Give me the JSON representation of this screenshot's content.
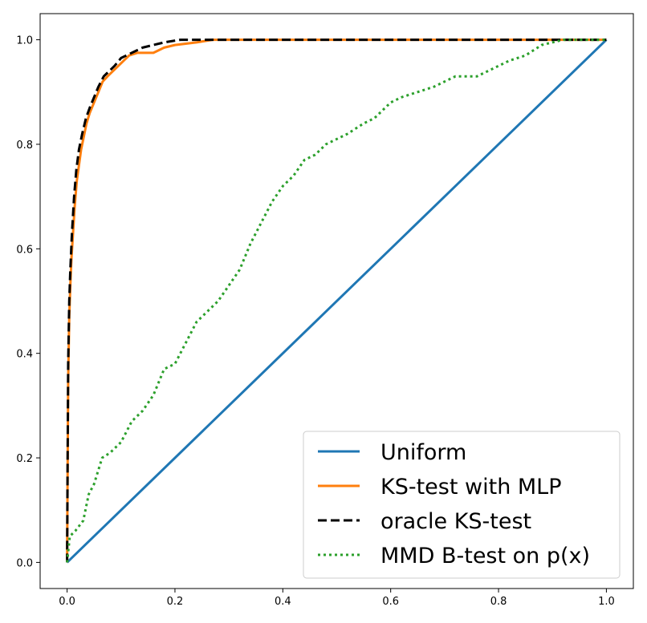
{
  "chart_data": {
    "type": "line",
    "title": "",
    "xlabel": "",
    "ylabel": "",
    "xlim": [
      -0.05,
      1.05
    ],
    "ylim": [
      -0.05,
      1.05
    ],
    "x_ticks": [
      "0.0",
      "0.2",
      "0.4",
      "0.6",
      "0.8",
      "1.0"
    ],
    "y_ticks": [
      "0.0",
      "0.2",
      "0.4",
      "0.6",
      "0.8",
      "1.0"
    ],
    "grid": false,
    "legend_position": "bottom-right",
    "series": [
      {
        "name": "Uniform",
        "color": "#1f77b4",
        "style": "solid",
        "points": [
          [
            0,
            0
          ],
          [
            1,
            1
          ]
        ]
      },
      {
        "name": "KS-test with MLP",
        "color": "#ff7f0e",
        "style": "solid",
        "points": [
          [
            0,
            0
          ],
          [
            0.001,
            0.18
          ],
          [
            0.002,
            0.35
          ],
          [
            0.004,
            0.47
          ],
          [
            0.006,
            0.53
          ],
          [
            0.008,
            0.58
          ],
          [
            0.011,
            0.63
          ],
          [
            0.014,
            0.68
          ],
          [
            0.018,
            0.73
          ],
          [
            0.022,
            0.76
          ],
          [
            0.026,
            0.79
          ],
          [
            0.03,
            0.81
          ],
          [
            0.036,
            0.84
          ],
          [
            0.042,
            0.86
          ],
          [
            0.05,
            0.88
          ],
          [
            0.058,
            0.9
          ],
          [
            0.066,
            0.92
          ],
          [
            0.075,
            0.93
          ],
          [
            0.085,
            0.94
          ],
          [
            0.095,
            0.95
          ],
          [
            0.105,
            0.96
          ],
          [
            0.115,
            0.97
          ],
          [
            0.13,
            0.975
          ],
          [
            0.16,
            0.975
          ],
          [
            0.18,
            0.985
          ],
          [
            0.2,
            0.99
          ],
          [
            0.24,
            0.995
          ],
          [
            0.27,
            1.0
          ],
          [
            1.0,
            1.0
          ]
        ]
      },
      {
        "name": "oracle KS-test",
        "color": "#000000",
        "style": "dashed",
        "points": [
          [
            0,
            0
          ],
          [
            0.001,
            0.2
          ],
          [
            0.002,
            0.38
          ],
          [
            0.004,
            0.5
          ],
          [
            0.006,
            0.56
          ],
          [
            0.009,
            0.63
          ],
          [
            0.013,
            0.7
          ],
          [
            0.017,
            0.75
          ],
          [
            0.022,
            0.79
          ],
          [
            0.028,
            0.82
          ],
          [
            0.035,
            0.85
          ],
          [
            0.042,
            0.87
          ],
          [
            0.05,
            0.89
          ],
          [
            0.058,
            0.91
          ],
          [
            0.068,
            0.93
          ],
          [
            0.078,
            0.94
          ],
          [
            0.088,
            0.95
          ],
          [
            0.1,
            0.965
          ],
          [
            0.12,
            0.975
          ],
          [
            0.14,
            0.985
          ],
          [
            0.16,
            0.99
          ],
          [
            0.18,
            0.995
          ],
          [
            0.21,
            1.0
          ],
          [
            1.0,
            1.0
          ]
        ]
      },
      {
        "name": "MMD B-test on p(x)",
        "color": "#2ca02c",
        "style": "dotted",
        "points": [
          [
            0,
            0
          ],
          [
            0.005,
            0.05
          ],
          [
            0.015,
            0.06
          ],
          [
            0.03,
            0.08
          ],
          [
            0.04,
            0.13
          ],
          [
            0.05,
            0.15
          ],
          [
            0.065,
            0.2
          ],
          [
            0.08,
            0.21
          ],
          [
            0.1,
            0.23
          ],
          [
            0.12,
            0.27
          ],
          [
            0.14,
            0.29
          ],
          [
            0.16,
            0.32
          ],
          [
            0.18,
            0.37
          ],
          [
            0.2,
            0.38
          ],
          [
            0.22,
            0.42
          ],
          [
            0.24,
            0.46
          ],
          [
            0.26,
            0.48
          ],
          [
            0.28,
            0.5
          ],
          [
            0.3,
            0.53
          ],
          [
            0.32,
            0.56
          ],
          [
            0.34,
            0.61
          ],
          [
            0.36,
            0.65
          ],
          [
            0.38,
            0.69
          ],
          [
            0.4,
            0.72
          ],
          [
            0.42,
            0.74
          ],
          [
            0.44,
            0.77
          ],
          [
            0.46,
            0.78
          ],
          [
            0.48,
            0.8
          ],
          [
            0.5,
            0.81
          ],
          [
            0.52,
            0.82
          ],
          [
            0.55,
            0.84
          ],
          [
            0.57,
            0.85
          ],
          [
            0.6,
            0.88
          ],
          [
            0.62,
            0.89
          ],
          [
            0.65,
            0.9
          ],
          [
            0.68,
            0.91
          ],
          [
            0.72,
            0.93
          ],
          [
            0.76,
            0.93
          ],
          [
            0.8,
            0.95
          ],
          [
            0.82,
            0.96
          ],
          [
            0.85,
            0.97
          ],
          [
            0.88,
            0.99
          ],
          [
            0.92,
            1.0
          ],
          [
            1.0,
            1.0
          ]
        ]
      }
    ]
  }
}
